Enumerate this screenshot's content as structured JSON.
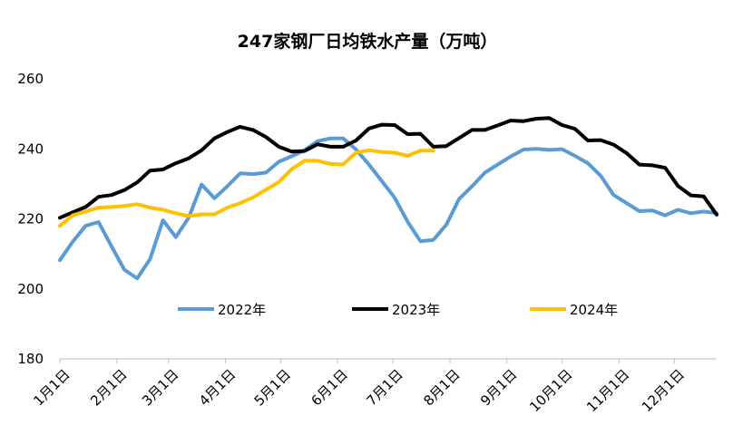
{
  "chart_data": {
    "type": "line",
    "title": "247家钢厂日均铁水产量（万吨）",
    "xlabel": "",
    "ylabel": "",
    "ylim": [
      180,
      260
    ],
    "yticks": [
      180,
      200,
      220,
      240,
      260
    ],
    "x_domain": [
      1,
      52
    ],
    "xticks": [
      {
        "label": "1月1日",
        "week": 1
      },
      {
        "label": "2月1日",
        "week": 5.43
      },
      {
        "label": "3月1日",
        "week": 9.43
      },
      {
        "label": "4月1日",
        "week": 13.86
      },
      {
        "label": "5月1日",
        "week": 18.14
      },
      {
        "label": "6月1日",
        "week": 22.57
      },
      {
        "label": "7月1日",
        "week": 26.86
      },
      {
        "label": "8月1日",
        "week": 31.29
      },
      {
        "label": "9月1日",
        "week": 35.71
      },
      {
        "label": "10月1日",
        "week": 40
      },
      {
        "label": "11月1日",
        "week": 44.43
      },
      {
        "label": "12月1日",
        "week": 48.71
      }
    ],
    "grid": false,
    "legend": "center",
    "series": [
      {
        "name": "2022年",
        "color": "#5b9bd5",
        "x": [
          1,
          2,
          3,
          4,
          5,
          6,
          7,
          8,
          9,
          10,
          11,
          12,
          13,
          14,
          15,
          16,
          17,
          18,
          19,
          20,
          21,
          22,
          23,
          24,
          25,
          26,
          27,
          28,
          29,
          30,
          31,
          32,
          33,
          34,
          35,
          36,
          37,
          38,
          39,
          40,
          41,
          42,
          43,
          44,
          45,
          46,
          47,
          48,
          49,
          50,
          51,
          52
        ],
        "values": [
          208.2,
          213.5,
          218,
          219.1,
          212.2,
          205.5,
          203,
          208.5,
          219.6,
          214.8,
          220.3,
          229.8,
          225.9,
          229.3,
          233,
          232.8,
          233.2,
          236.3,
          237.9,
          239.6,
          242.2,
          243,
          243,
          239.8,
          235.5,
          230.8,
          226,
          219.2,
          213.6,
          214,
          218.3,
          225.7,
          229.3,
          233.2,
          235.5,
          237.8,
          239.8,
          240,
          239.7,
          239.9,
          238,
          235.9,
          232.3,
          226.8,
          224.5,
          222.2,
          222.4,
          221,
          222.6,
          221.6,
          222.1,
          221.6
        ]
      },
      {
        "name": "2023年",
        "color": "#000000",
        "x": [
          1,
          2,
          3,
          4,
          5,
          6,
          7,
          8,
          9,
          10,
          11,
          12,
          13,
          14,
          15,
          16,
          17,
          18,
          19,
          20,
          21,
          22,
          23,
          24,
          25,
          26,
          27,
          28,
          29,
          30,
          31,
          32,
          33,
          34,
          35,
          36,
          37,
          38,
          39,
          40,
          41,
          42,
          43,
          44,
          45,
          46,
          47,
          48,
          49,
          50,
          51,
          52
        ],
        "values": [
          220.3,
          221.9,
          223.4,
          226.3,
          226.8,
          228.2,
          230.4,
          233.8,
          234.1,
          235.9,
          237.3,
          239.6,
          243,
          244.8,
          246.3,
          245.4,
          243.4,
          240.6,
          239.2,
          239.4,
          241.3,
          240.6,
          240.6,
          242.4,
          245.8,
          246.9,
          246.8,
          244.2,
          244.3,
          240.6,
          240.8,
          243.1,
          245.4,
          245.4,
          246.7,
          248.1,
          247.9,
          248.6,
          248.8,
          246.8,
          245.7,
          242.4,
          242.5,
          241.2,
          238.8,
          235.5,
          235.3,
          234.6,
          229.4,
          226.7,
          226.4,
          221.2
        ]
      },
      {
        "name": "2024年",
        "color": "#ffc000",
        "x": [
          1,
          2,
          3,
          4,
          5,
          6,
          7,
          8,
          9,
          10,
          11,
          12,
          13,
          14,
          15,
          16,
          17,
          18,
          19,
          20,
          21,
          22,
          23,
          24,
          25,
          26,
          27,
          28,
          29,
          30
        ],
        "values": [
          218,
          221,
          222.1,
          223.2,
          223.4,
          223.7,
          224.2,
          223.2,
          222.6,
          221.6,
          220.8,
          221.3,
          221.3,
          223.2,
          224.5,
          226.1,
          228.3,
          230.5,
          234.2,
          236.6,
          236.6,
          235.7,
          235.6,
          238.9,
          239.6,
          239.1,
          238.9,
          238,
          239.5,
          239.5
        ]
      }
    ]
  }
}
